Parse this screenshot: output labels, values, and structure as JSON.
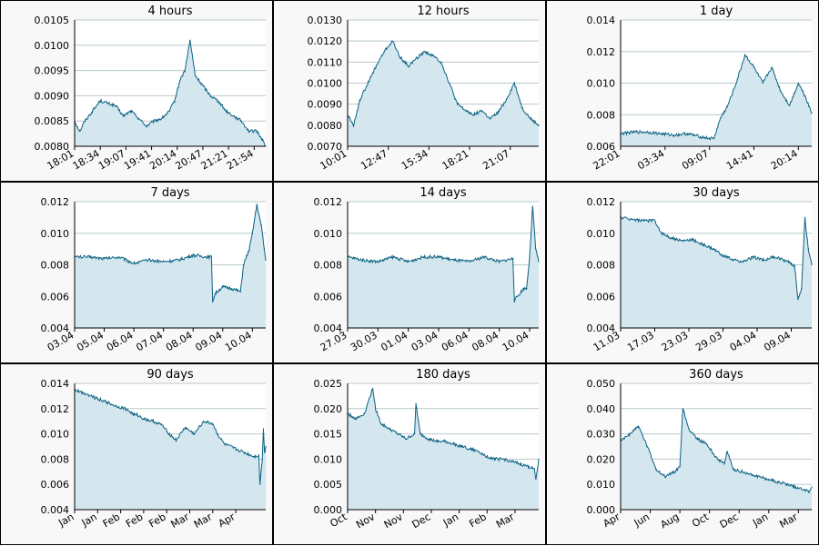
{
  "colors": {
    "line": "#0b6283",
    "fill": "#d4e6ee",
    "grid": "#b8c8cc",
    "panel_bg": "#f8f8f8",
    "plot_bg": "#ffffff",
    "border": "#000000"
  },
  "chart_data": [
    {
      "type": "area",
      "title": "4 hours",
      "ylim": [
        0.008,
        0.0105
      ],
      "yticks": [
        "0.0080",
        "0.0085",
        "0.0090",
        "0.0095",
        "0.0100",
        "0.0105"
      ],
      "xticks": [
        "18:01",
        "18:34",
        "19:07",
        "19:41",
        "20:14",
        "20:47",
        "21:21",
        "21:54"
      ],
      "xtick_pos": [
        0,
        1,
        2,
        3,
        4,
        5,
        6,
        7
      ],
      "xlim": [
        0,
        7.45
      ],
      "x": [
        0,
        0.2,
        0.4,
        0.7,
        1.0,
        1.3,
        1.6,
        1.9,
        2.2,
        2.5,
        2.8,
        3.1,
        3.4,
        3.7,
        3.9,
        4.1,
        4.3,
        4.5,
        4.7,
        5.0,
        5.3,
        5.6,
        5.9,
        6.2,
        6.5,
        6.8,
        7.1,
        7.3,
        7.45
      ],
      "y": [
        0.0085,
        0.0083,
        0.0085,
        0.0087,
        0.0089,
        0.00885,
        0.0088,
        0.0086,
        0.0087,
        0.00855,
        0.0084,
        0.0085,
        0.00855,
        0.0087,
        0.0089,
        0.0093,
        0.0095,
        0.0101,
        0.0094,
        0.0092,
        0.009,
        0.0089,
        0.0087,
        0.0086,
        0.0085,
        0.0083,
        0.0083,
        0.00815,
        0.008
      ]
    },
    {
      "type": "area",
      "title": "12 hours",
      "ylim": [
        0.007,
        0.013
      ],
      "yticks": [
        "0.0070",
        "0.0080",
        "0.0090",
        "0.0100",
        "0.0110",
        "0.0120",
        "0.0130"
      ],
      "xticks": [
        "10:01",
        "12:47",
        "15:34",
        "18:21",
        "21:07"
      ],
      "xtick_pos": [
        0,
        1,
        2,
        3,
        4
      ],
      "xlim": [
        0,
        4.7
      ],
      "x": [
        0,
        0.15,
        0.3,
        0.5,
        0.7,
        0.9,
        1.1,
        1.3,
        1.5,
        1.7,
        1.9,
        2.1,
        2.3,
        2.5,
        2.7,
        2.9,
        3.1,
        3.3,
        3.5,
        3.7,
        3.9,
        4.1,
        4.3,
        4.5,
        4.7
      ],
      "y": [
        0.0085,
        0.008,
        0.0092,
        0.01,
        0.0108,
        0.0115,
        0.012,
        0.0112,
        0.0108,
        0.0112,
        0.0115,
        0.0113,
        0.011,
        0.01,
        0.009,
        0.0087,
        0.0085,
        0.0087,
        0.0083,
        0.0086,
        0.0092,
        0.01,
        0.0088,
        0.0083,
        0.008
      ]
    },
    {
      "type": "area",
      "title": "1 day",
      "ylim": [
        0.006,
        0.014
      ],
      "yticks": [
        "0.006",
        "0.008",
        "0.010",
        "0.012",
        "0.014"
      ],
      "xticks": [
        "22:01",
        "03:34",
        "09:07",
        "14:41",
        "20:14"
      ],
      "xtick_pos": [
        0,
        1,
        2,
        3,
        4
      ],
      "xlim": [
        0,
        4.3
      ],
      "x": [
        0,
        0.3,
        0.6,
        0.9,
        1.2,
        1.5,
        1.8,
        2.0,
        2.1,
        2.25,
        2.4,
        2.6,
        2.8,
        3.0,
        3.2,
        3.4,
        3.6,
        3.8,
        4.0,
        4.15,
        4.3
      ],
      "y": [
        0.0068,
        0.0069,
        0.0069,
        0.0068,
        0.0067,
        0.0068,
        0.0066,
        0.0065,
        0.0065,
        0.0078,
        0.0085,
        0.01,
        0.0118,
        0.011,
        0.01,
        0.011,
        0.0095,
        0.0086,
        0.01,
        0.0092,
        0.0081
      ]
    },
    {
      "type": "area",
      "title": "7 days",
      "ylim": [
        0.004,
        0.012
      ],
      "yticks": [
        "0.004",
        "0.006",
        "0.008",
        "0.010",
        "0.012"
      ],
      "xticks": [
        "03.04",
        "05.04",
        "06.04",
        "07.04",
        "08.04",
        "09.04",
        "10.04"
      ],
      "xtick_pos": [
        0,
        1,
        2,
        3,
        4,
        5,
        6
      ],
      "xlim": [
        0,
        6.45
      ],
      "x": [
        0,
        0.5,
        1.0,
        1.5,
        2.0,
        2.5,
        3.0,
        3.5,
        4.0,
        4.5,
        4.62,
        4.66,
        4.75,
        5.0,
        5.3,
        5.6,
        5.7,
        5.9,
        6.0,
        6.15,
        6.3,
        6.4,
        6.45
      ],
      "y": [
        0.0085,
        0.0085,
        0.0084,
        0.0085,
        0.0081,
        0.0083,
        0.0082,
        0.0083,
        0.0086,
        0.0085,
        0.0085,
        0.0057,
        0.0062,
        0.0066,
        0.0065,
        0.0063,
        0.008,
        0.009,
        0.01,
        0.0118,
        0.0105,
        0.009,
        0.0083
      ]
    },
    {
      "type": "area",
      "title": "14 days",
      "ylim": [
        0.004,
        0.012
      ],
      "yticks": [
        "0.004",
        "0.006",
        "0.008",
        "0.010",
        "0.012"
      ],
      "xticks": [
        "27.03",
        "30.03",
        "01.04",
        "03.04",
        "06.04",
        "08.04",
        "10.04"
      ],
      "xtick_pos": [
        0,
        1,
        2,
        3,
        4,
        5,
        6
      ],
      "xlim": [
        0,
        6.3
      ],
      "x": [
        0,
        0.5,
        1.0,
        1.5,
        2.0,
        2.5,
        3.0,
        3.5,
        4.0,
        4.5,
        5.0,
        5.45,
        5.5,
        5.6,
        5.8,
        5.9,
        6.0,
        6.1,
        6.2,
        6.3
      ],
      "y": [
        0.0085,
        0.0083,
        0.0082,
        0.0085,
        0.0082,
        0.0085,
        0.0085,
        0.0083,
        0.0082,
        0.0085,
        0.0082,
        0.0084,
        0.0057,
        0.006,
        0.0065,
        0.0065,
        0.0085,
        0.0117,
        0.009,
        0.0082
      ]
    },
    {
      "type": "area",
      "title": "30 days",
      "ylim": [
        0.004,
        0.012
      ],
      "yticks": [
        "0.004",
        "0.006",
        "0.008",
        "0.010",
        "0.012"
      ],
      "xticks": [
        "11.03",
        "17.03",
        "23.03",
        "29.03",
        "04.04",
        "09.04"
      ],
      "xtick_pos": [
        0,
        1,
        2,
        3,
        4,
        5
      ],
      "xlim": [
        0,
        5.6
      ],
      "x": [
        0,
        0.3,
        0.6,
        0.9,
        1.0,
        1.2,
        1.5,
        1.8,
        2.1,
        2.4,
        2.7,
        3.0,
        3.3,
        3.6,
        3.9,
        4.2,
        4.5,
        4.8,
        5.0,
        5.1,
        5.2,
        5.3,
        5.4,
        5.5,
        5.6
      ],
      "y": [
        0.011,
        0.0109,
        0.0108,
        0.0108,
        0.0108,
        0.01,
        0.0097,
        0.0095,
        0.0096,
        0.0093,
        0.009,
        0.0086,
        0.0083,
        0.0082,
        0.0085,
        0.0083,
        0.0085,
        0.0083,
        0.0081,
        0.0079,
        0.0058,
        0.0065,
        0.011,
        0.009,
        0.008
      ]
    },
    {
      "type": "area",
      "title": "90 days",
      "ylim": [
        0.004,
        0.014
      ],
      "yticks": [
        "0.004",
        "0.006",
        "0.008",
        "0.010",
        "0.012",
        "0.014"
      ],
      "xticks": [
        "Jan",
        "Jan",
        "Feb",
        "Feb",
        "Feb",
        "Mar",
        "Mar",
        "Apr"
      ],
      "xtick_pos": [
        0,
        1,
        2,
        3,
        4,
        5,
        6,
        7
      ],
      "xlim": [
        0,
        8.3
      ],
      "x": [
        0,
        0.3,
        0.6,
        1.0,
        1.4,
        1.8,
        2.2,
        2.6,
        2.7,
        3.0,
        3.4,
        3.8,
        4.0,
        4.4,
        4.8,
        5.2,
        5.6,
        6.0,
        6.2,
        6.5,
        7.0,
        7.4,
        7.8,
        8.0,
        8.05,
        8.15,
        8.2,
        8.25,
        8.3
      ],
      "y": [
        0.0135,
        0.0133,
        0.0131,
        0.0128,
        0.0125,
        0.0122,
        0.012,
        0.0115,
        0.0115,
        0.0112,
        0.011,
        0.0107,
        0.0102,
        0.0095,
        0.0105,
        0.01,
        0.011,
        0.0108,
        0.01,
        0.0092,
        0.0088,
        0.0085,
        0.0082,
        0.0083,
        0.006,
        0.008,
        0.0104,
        0.0085,
        0.009
      ]
    },
    {
      "type": "area",
      "title": "180 days",
      "ylim": [
        0.0,
        0.025
      ],
      "yticks": [
        "0.000",
        "0.005",
        "0.010",
        "0.015",
        "0.020",
        "0.025"
      ],
      "xticks": [
        "Oct",
        "Nov",
        "Nov",
        "Dec",
        "Jan",
        "Feb",
        "Mar"
      ],
      "xtick_pos": [
        0,
        1,
        2,
        3,
        4,
        5,
        6
      ],
      "xlim": [
        0,
        6.85
      ],
      "x": [
        0,
        0.3,
        0.6,
        0.9,
        1.0,
        1.2,
        1.5,
        1.8,
        2.1,
        2.4,
        2.45,
        2.6,
        2.9,
        3.2,
        3.5,
        3.8,
        4.1,
        4.4,
        4.7,
        5.0,
        5.3,
        5.6,
        5.9,
        6.2,
        6.5,
        6.7,
        6.75,
        6.85
      ],
      "y": [
        0.019,
        0.018,
        0.019,
        0.024,
        0.02,
        0.017,
        0.016,
        0.015,
        0.014,
        0.015,
        0.021,
        0.015,
        0.014,
        0.0135,
        0.0135,
        0.013,
        0.0125,
        0.012,
        0.0115,
        0.0105,
        0.01,
        0.01,
        0.0095,
        0.009,
        0.0085,
        0.008,
        0.006,
        0.01
      ]
    },
    {
      "type": "area",
      "title": "360 days",
      "ylim": [
        0.0,
        0.05
      ],
      "yticks": [
        "0.000",
        "0.010",
        "0.020",
        "0.030",
        "0.040",
        "0.050"
      ],
      "xticks": [
        "Apr",
        "Jun",
        "Aug",
        "Oct",
        "Dec",
        "Jan",
        "Mar"
      ],
      "xtick_pos": [
        0,
        1,
        2,
        3,
        4,
        5,
        6
      ],
      "xlim": [
        0,
        6.45
      ],
      "x": [
        0,
        0.3,
        0.6,
        0.9,
        1.2,
        1.5,
        1.8,
        2.0,
        2.1,
        2.3,
        2.6,
        2.9,
        3.2,
        3.5,
        3.6,
        3.8,
        4.1,
        4.4,
        4.7,
        5.0,
        5.3,
        5.6,
        5.9,
        6.2,
        6.35,
        6.45
      ],
      "y": [
        0.027,
        0.03,
        0.033,
        0.025,
        0.016,
        0.013,
        0.015,
        0.017,
        0.04,
        0.032,
        0.028,
        0.026,
        0.021,
        0.018,
        0.023,
        0.016,
        0.015,
        0.014,
        0.013,
        0.012,
        0.011,
        0.01,
        0.009,
        0.008,
        0.007,
        0.009
      ]
    }
  ]
}
